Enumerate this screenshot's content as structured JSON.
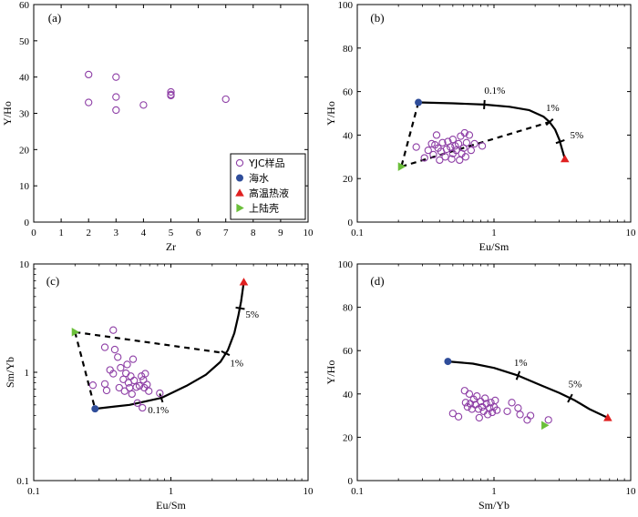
{
  "colors": {
    "sample": "#8e3fa6",
    "seawater": "#2f4d9a",
    "hydrothermal": "#e02020",
    "upper_crust": "#6bbf3a",
    "curve": "#000000"
  },
  "legend": {
    "items": [
      {
        "label": "YJC样品",
        "marker": "open-circle",
        "color_key": "sample"
      },
      {
        "label": "海水",
        "marker": "filled-circle",
        "color_key": "seawater"
      },
      {
        "label": "高温热液",
        "marker": "triangle-up",
        "color_key": "hydrothermal"
      },
      {
        "label": "上陆壳",
        "marker": "triangle-right",
        "color_key": "upper_crust"
      }
    ]
  },
  "chart_data": [
    {
      "panel": "(a)",
      "type": "scatter",
      "xlabel": "Zr",
      "ylabel": "Y/Ho",
      "xscale": "linear",
      "yscale": "linear",
      "xlim": [
        0,
        10
      ],
      "ylim": [
        0,
        60
      ],
      "xticks": [
        0,
        1,
        2,
        3,
        4,
        5,
        6,
        7,
        8,
        9,
        10
      ],
      "yticks": [
        0,
        10,
        20,
        30,
        40,
        50,
        60
      ],
      "legend_position": "bottom-right",
      "series": [
        {
          "name": "YJC样品",
          "marker": "open-circle",
          "points": [
            [
              2,
              40.7
            ],
            [
              2,
              33
            ],
            [
              3,
              40
            ],
            [
              3,
              34.5
            ],
            [
              3,
              30.9
            ],
            [
              4,
              32.3
            ],
            [
              5,
              35.9
            ],
            [
              5,
              35.2
            ],
            [
              5,
              34.9
            ],
            [
              7,
              33.9
            ]
          ]
        }
      ]
    },
    {
      "panel": "(b)",
      "type": "scatter",
      "xlabel": "Eu/Sm",
      "ylabel": "Y/Ho",
      "xscale": "log",
      "yscale": "linear",
      "xlim": [
        0.1,
        10
      ],
      "ylim": [
        0,
        100
      ],
      "xticks": [
        0.1,
        1,
        10
      ],
      "yticks": [
        0,
        20,
        40,
        60,
        80,
        100
      ],
      "series": [
        {
          "name": "YJC样品",
          "marker": "open-circle",
          "points": [
            [
              0.27,
              34.5
            ],
            [
              0.31,
              29.5
            ],
            [
              0.33,
              33
            ],
            [
              0.35,
              36
            ],
            [
              0.36,
              31
            ],
            [
              0.37,
              35.5
            ],
            [
              0.38,
              40
            ],
            [
              0.39,
              34
            ],
            [
              0.4,
              28.5
            ],
            [
              0.41,
              32.5
            ],
            [
              0.42,
              36.5
            ],
            [
              0.44,
              30
            ],
            [
              0.45,
              33.5
            ],
            [
              0.46,
              37
            ],
            [
              0.48,
              34.5
            ],
            [
              0.49,
              29
            ],
            [
              0.5,
              38
            ],
            [
              0.5,
              31.5
            ],
            [
              0.52,
              35
            ],
            [
              0.53,
              33
            ],
            [
              0.55,
              36
            ],
            [
              0.56,
              28.5
            ],
            [
              0.57,
              39.5
            ],
            [
              0.58,
              31.5
            ],
            [
              0.6,
              34
            ],
            [
              0.61,
              41
            ],
            [
              0.62,
              30
            ],
            [
              0.63,
              36.5
            ],
            [
              0.66,
              40
            ],
            [
              0.68,
              33
            ],
            [
              0.72,
              36
            ],
            [
              0.82,
              35
            ]
          ]
        },
        {
          "name": "海水",
          "marker": "filled-circle",
          "points": [
            [
              0.28,
              55
            ]
          ]
        },
        {
          "name": "高温热液",
          "marker": "triangle-up",
          "points": [
            [
              3.3,
              29
            ]
          ]
        },
        {
          "name": "上陆壳",
          "marker": "triangle-right",
          "points": [
            [
              0.21,
              25.5
            ]
          ]
        }
      ],
      "mixing_curve": {
        "solid": [
          [
            0.28,
            55
          ],
          [
            0.5,
            54.6
          ],
          [
            0.85,
            54
          ],
          [
            1.3,
            53
          ],
          [
            1.8,
            51.5
          ],
          [
            2.3,
            48.5
          ],
          [
            2.55,
            46
          ],
          [
            2.8,
            42.5
          ],
          [
            3.0,
            38
          ],
          [
            3.15,
            33.5
          ],
          [
            3.3,
            29
          ]
        ],
        "dashed": [
          [
            [
              0.28,
              55
            ],
            [
              0.21,
              25.5
            ]
          ],
          [
            [
              0.21,
              25.5
            ],
            [
              2.55,
              46
            ]
          ]
        ],
        "ticks": [
          [
            0.85,
            54
          ],
          [
            2.55,
            46
          ],
          [
            3.05,
            37
          ]
        ]
      },
      "annotations": [
        {
          "text": "0.1%",
          "x": 0.85,
          "y": 59
        },
        {
          "text": "1%",
          "x": 2.4,
          "y": 51
        },
        {
          "text": "5%",
          "x": 3.6,
          "y": 38.5
        }
      ]
    },
    {
      "panel": "(c)",
      "type": "scatter",
      "xlabel": "Eu/Sm",
      "ylabel": "Sm/Yb",
      "xscale": "log",
      "yscale": "log",
      "xlim": [
        0.1,
        10
      ],
      "ylim": [
        0.1,
        10
      ],
      "xticks": [
        0.1,
        1,
        10
      ],
      "yticks": [
        0.1,
        1,
        10
      ],
      "series": [
        {
          "name": "YJC样品",
          "marker": "open-circle",
          "points": [
            [
              0.27,
              0.76
            ],
            [
              0.33,
              1.7
            ],
            [
              0.33,
              0.78
            ],
            [
              0.34,
              0.68
            ],
            [
              0.36,
              1.05
            ],
            [
              0.38,
              2.45
            ],
            [
              0.38,
              0.97
            ],
            [
              0.39,
              1.62
            ],
            [
              0.41,
              1.38
            ],
            [
              0.42,
              0.72
            ],
            [
              0.43,
              1.1
            ],
            [
              0.45,
              0.86
            ],
            [
              0.46,
              0.67
            ],
            [
              0.47,
              0.98
            ],
            [
              0.48,
              1.18
            ],
            [
              0.49,
              0.8
            ],
            [
              0.5,
              0.72
            ],
            [
              0.51,
              0.92
            ],
            [
              0.52,
              0.63
            ],
            [
              0.53,
              1.32
            ],
            [
              0.54,
              0.84
            ],
            [
              0.56,
              0.73
            ],
            [
              0.57,
              0.52
            ],
            [
              0.59,
              0.75
            ],
            [
              0.61,
              0.92
            ],
            [
              0.62,
              0.47
            ],
            [
              0.63,
              0.85
            ],
            [
              0.64,
              0.72
            ],
            [
              0.65,
              0.97
            ],
            [
              0.67,
              0.77
            ],
            [
              0.69,
              0.67
            ],
            [
              0.83,
              0.64
            ]
          ]
        },
        {
          "name": "海水",
          "marker": "filled-circle",
          "points": [
            [
              0.28,
              0.46
            ]
          ]
        },
        {
          "name": "高温热液",
          "marker": "triangle-up",
          "points": [
            [
              3.4,
              6.8
            ]
          ]
        },
        {
          "name": "上陆壳",
          "marker": "triangle-right",
          "points": [
            [
              0.2,
              2.35
            ]
          ]
        }
      ],
      "mixing_curve": {
        "solid": [
          [
            0.28,
            0.46
          ],
          [
            0.5,
            0.5
          ],
          [
            0.85,
            0.58
          ],
          [
            1.3,
            0.75
          ],
          [
            1.8,
            0.95
          ],
          [
            2.3,
            1.25
          ],
          [
            2.6,
            1.6
          ],
          [
            2.9,
            2.3
          ],
          [
            3.1,
            3.3
          ],
          [
            3.25,
            4.5
          ],
          [
            3.4,
            6.8
          ]
        ],
        "dashed": [
          [
            [
              0.2,
              2.35
            ],
            [
              0.28,
              0.46
            ]
          ],
          [
            [
              0.2,
              2.35
            ],
            [
              2.5,
              1.5
            ]
          ]
        ],
        "ticks": [
          [
            0.85,
            0.58
          ],
          [
            2.5,
            1.5
          ],
          [
            3.2,
            3.9
          ]
        ]
      },
      "annotations": [
        {
          "text": "0.1%",
          "x": 0.68,
          "y": 0.42
        },
        {
          "text": "1%",
          "x": 2.7,
          "y": 1.13
        },
        {
          "text": "5%",
          "x": 3.5,
          "y": 3.2
        }
      ]
    },
    {
      "panel": "(d)",
      "type": "scatter",
      "xlabel": "Sm/Yb",
      "ylabel": "Y/Ho",
      "xscale": "log",
      "yscale": "linear",
      "xlim": [
        0.1,
        10
      ],
      "ylim": [
        0,
        100
      ],
      "xticks": [
        0.1,
        1,
        10
      ],
      "yticks": [
        0,
        20,
        40,
        60,
        80,
        100
      ],
      "series": [
        {
          "name": "YJC样品",
          "marker": "open-circle",
          "points": [
            [
              0.5,
              31
            ],
            [
              0.55,
              29.5
            ],
            [
              0.61,
              41.5
            ],
            [
              0.62,
              36
            ],
            [
              0.64,
              34
            ],
            [
              0.66,
              40
            ],
            [
              0.67,
              35.5
            ],
            [
              0.69,
              33
            ],
            [
              0.71,
              37.5
            ],
            [
              0.73,
              35
            ],
            [
              0.75,
              39
            ],
            [
              0.77,
              33
            ],
            [
              0.78,
              29
            ],
            [
              0.8,
              36.5
            ],
            [
              0.82,
              34
            ],
            [
              0.84,
              32
            ],
            [
              0.86,
              38
            ],
            [
              0.88,
              35.5
            ],
            [
              0.9,
              30.5
            ],
            [
              0.93,
              33.5
            ],
            [
              0.95,
              36
            ],
            [
              0.97,
              31.5
            ],
            [
              1.0,
              34
            ],
            [
              1.02,
              37
            ],
            [
              1.05,
              32.5
            ],
            [
              1.25,
              32
            ],
            [
              1.35,
              36
            ],
            [
              1.5,
              33.5
            ],
            [
              1.55,
              30.5
            ],
            [
              1.75,
              28
            ],
            [
              1.85,
              30
            ],
            [
              2.5,
              28
            ]
          ]
        },
        {
          "name": "海水",
          "marker": "filled-circle",
          "points": [
            [
              0.46,
              55
            ]
          ]
        },
        {
          "name": "高温热液",
          "marker": "triangle-up",
          "points": [
            [
              6.8,
              29
            ]
          ]
        },
        {
          "name": "上陆壳",
          "marker": "triangle-right",
          "points": [
            [
              2.35,
              25.5
            ]
          ]
        }
      ],
      "mixing_curve": {
        "solid": [
          [
            0.46,
            55
          ],
          [
            0.7,
            54
          ],
          [
            1.0,
            52
          ],
          [
            1.5,
            48.5
          ],
          [
            2.2,
            44
          ],
          [
            3.0,
            40.5
          ],
          [
            3.9,
            37
          ],
          [
            5.0,
            33
          ],
          [
            6.8,
            29
          ]
        ],
        "dashed": [],
        "ticks": [
          [
            1.5,
            48.5
          ],
          [
            3.6,
            38
          ]
        ]
      },
      "annotations": [
        {
          "text": "1%",
          "x": 1.4,
          "y": 53
        },
        {
          "text": "5%",
          "x": 3.5,
          "y": 43
        }
      ]
    }
  ]
}
